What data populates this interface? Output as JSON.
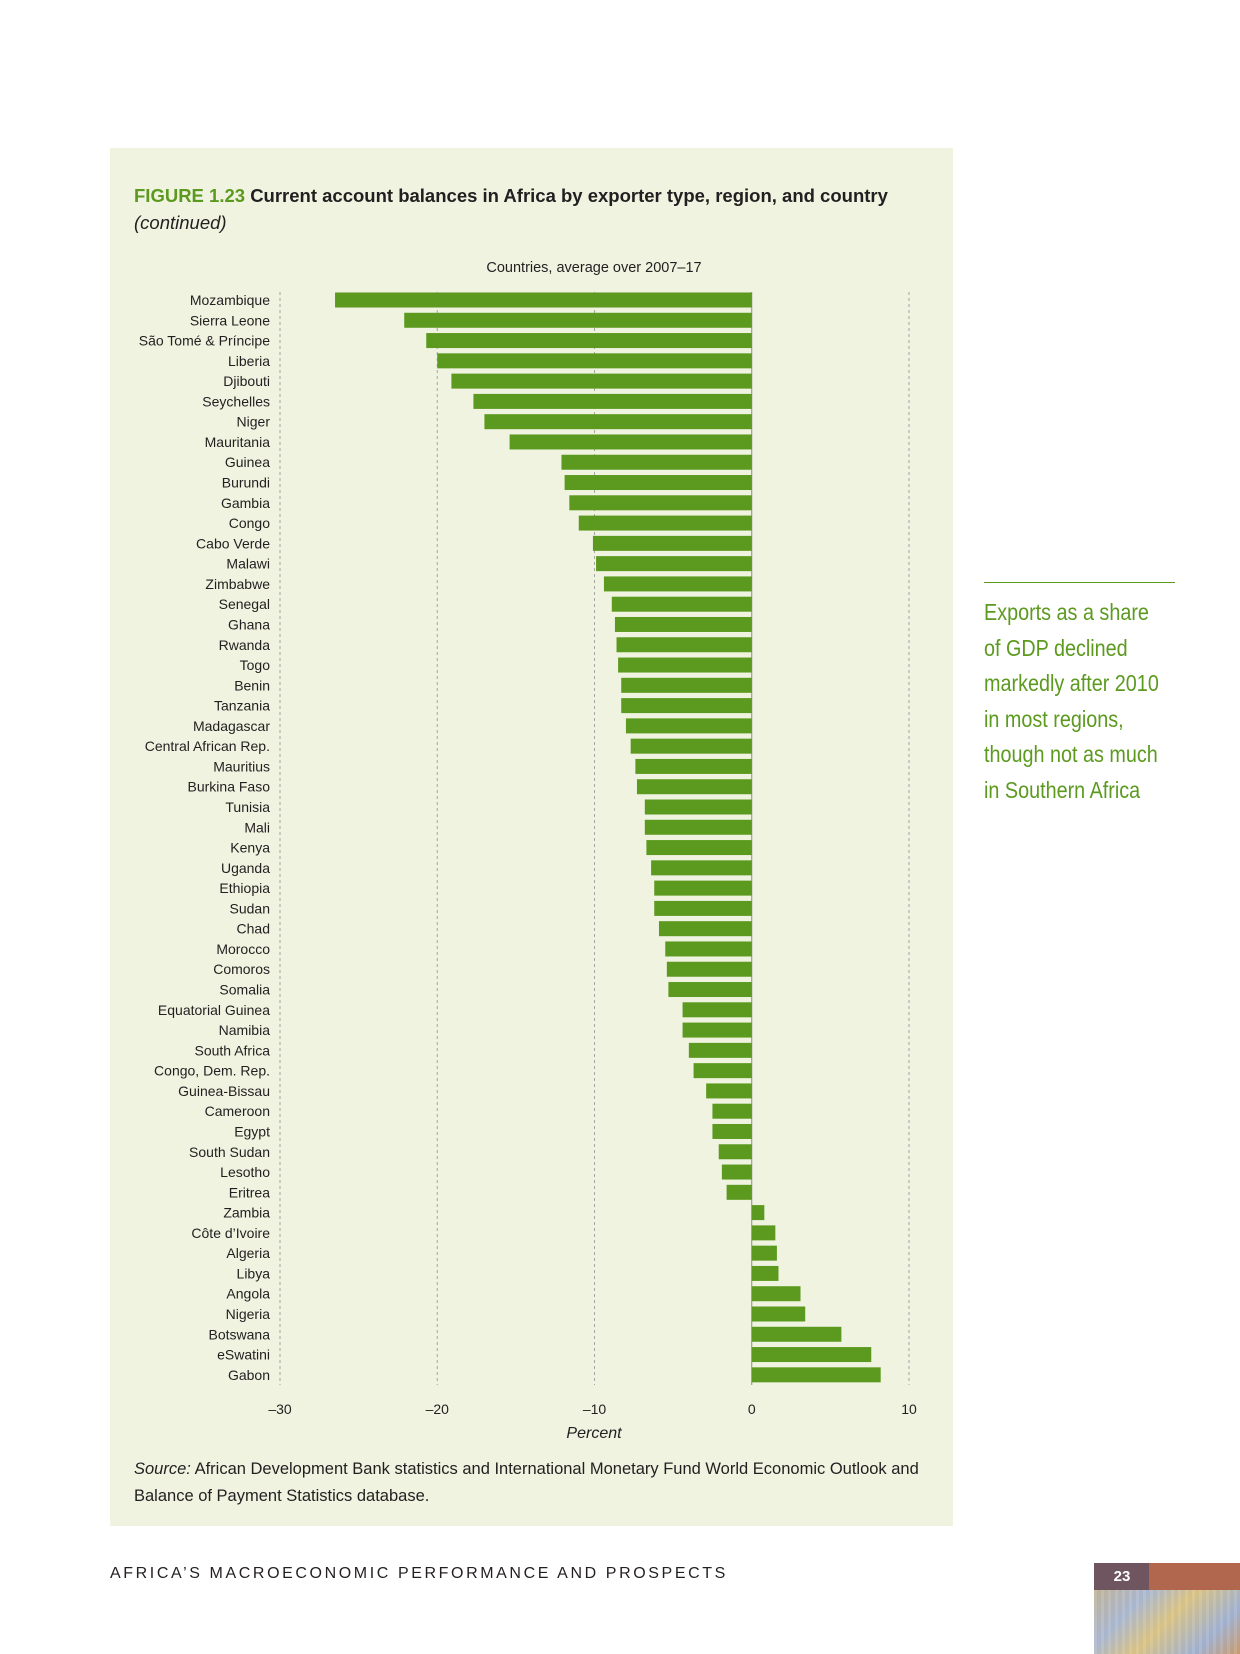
{
  "figure": {
    "label": "FIGURE 1.23",
    "title": "Current account balances in Africa by exporter type, region, and country",
    "continued": "(continued)",
    "source_label": "Source:",
    "source_text": "African Development Bank statistics and International Monetary Fund World Economic Outlook and Balance of Payment Statistics database."
  },
  "chart_data": {
    "type": "bar",
    "orientation": "horizontal",
    "title": "Countries, average over 2007–17",
    "xlabel": "Percent",
    "ylabel": "",
    "xlim": [
      -30,
      10
    ],
    "x_ticks": [
      -30,
      -20,
      -10,
      0,
      10
    ],
    "x_tick_labels": [
      "–30",
      "–20",
      "–10",
      "0",
      "10"
    ],
    "grid": "vertical dashed at ticks",
    "bar_color": "#5c9a1f",
    "categories": [
      "Mozambique",
      "Sierra Leone",
      "São Tomé & Príncipe",
      "Liberia",
      "Djibouti",
      "Seychelles",
      "Niger",
      "Mauritania",
      "Guinea",
      "Burundi",
      "Gambia",
      "Congo",
      "Cabo Verde",
      "Malawi",
      "Zimbabwe",
      "Senegal",
      "Ghana",
      "Rwanda",
      "Togo",
      "Benin",
      "Tanzania",
      "Madagascar",
      "Central African Rep.",
      "Mauritius",
      "Burkina Faso",
      "Tunisia",
      "Mali",
      "Kenya",
      "Uganda",
      "Ethiopia",
      "Sudan",
      "Chad",
      "Morocco",
      "Comoros",
      "Somalia",
      "Equatorial Guinea",
      "Namibia",
      "South Africa",
      "Congo, Dem. Rep.",
      "Guinea-Bissau",
      "Cameroon",
      "Egypt",
      "South Sudan",
      "Lesotho",
      "Eritrea",
      "Zambia",
      "Côte d’Ivoire",
      "Algeria",
      "Libya",
      "Angola",
      "Nigeria",
      "Botswana",
      "eSwatini",
      "Gabon"
    ],
    "values": [
      -26.5,
      -22.1,
      -20.7,
      -20.0,
      -19.1,
      -17.7,
      -17.0,
      -15.4,
      -12.1,
      -11.9,
      -11.6,
      -11.0,
      -10.1,
      -9.9,
      -9.4,
      -8.9,
      -8.7,
      -8.6,
      -8.5,
      -8.3,
      -8.3,
      -8.0,
      -7.7,
      -7.4,
      -7.3,
      -6.8,
      -6.8,
      -6.7,
      -6.4,
      -6.2,
      -6.2,
      -5.9,
      -5.5,
      -5.4,
      -5.3,
      -4.4,
      -4.4,
      -4.0,
      -3.7,
      -2.9,
      -2.5,
      -2.5,
      -2.1,
      -1.9,
      -1.6,
      0.8,
      1.5,
      1.6,
      1.7,
      3.1,
      3.4,
      5.7,
      7.6,
      8.2
    ]
  },
  "sidebar": {
    "callout": [
      "Exports as a share",
      "of GDP declined",
      "markedly after 2010",
      "in most regions,",
      "though not as much",
      "in Southern Africa"
    ]
  },
  "footer": {
    "running_title": "AFRICA’S MACROECONOMIC PERFORMANCE AND PROSPECTS",
    "page_number": "23"
  }
}
